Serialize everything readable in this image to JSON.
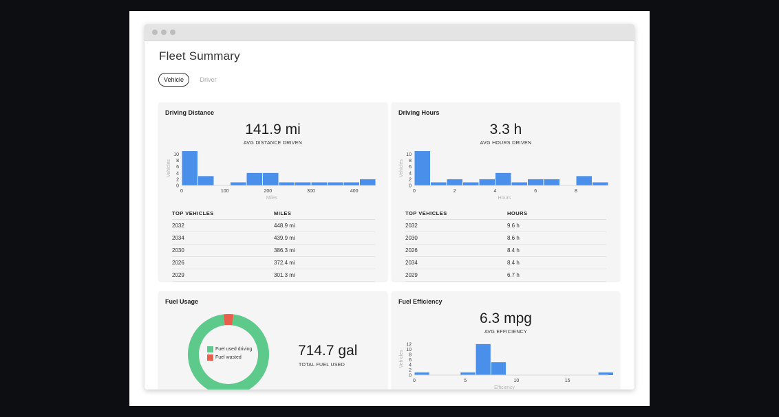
{
  "page": {
    "title": "Fleet Summary",
    "tabs": [
      {
        "label": "Vehicle",
        "active": true
      },
      {
        "label": "Driver",
        "active": false
      }
    ]
  },
  "colors": {
    "bar": "#4a8fea",
    "fuel_driving": "#5dc98a",
    "fuel_wasted": "#e8604c"
  },
  "cards": {
    "driving_distance": {
      "title": "Driving Distance",
      "value": "141.9 mi",
      "label": "AVG DISTANCE DRIVEN",
      "table": {
        "headers": [
          "TOP VEHICLES",
          "MILES"
        ],
        "rows": [
          [
            "2032",
            "448.9 mi"
          ],
          [
            "2034",
            "439.9 mi"
          ],
          [
            "2030",
            "386.3 mi"
          ],
          [
            "2026",
            "372.4 mi"
          ],
          [
            "2029",
            "301.3 mi"
          ]
        ]
      }
    },
    "driving_hours": {
      "title": "Driving Hours",
      "value": "3.3 h",
      "label": "AVG HOURS DRIVEN",
      "table": {
        "headers": [
          "TOP VEHICLES",
          "HOURS"
        ],
        "rows": [
          [
            "2032",
            "9.6 h"
          ],
          [
            "2030",
            "8.6 h"
          ],
          [
            "2026",
            "8.4 h"
          ],
          [
            "2034",
            "8.4 h"
          ],
          [
            "2029",
            "6.7 h"
          ]
        ]
      }
    },
    "fuel_usage": {
      "title": "Fuel Usage",
      "value": "714.7 gal",
      "label": "TOTAL FUEL USED",
      "legend": [
        "Fuel used driving",
        "Fuel wasted"
      ]
    },
    "fuel_efficiency": {
      "title": "Fuel Efficiency",
      "value": "6.3 mpg",
      "label": "AVG EFFICIENCY"
    }
  },
  "chart_data": [
    {
      "type": "bar",
      "id": "distance",
      "ylabel": "Vehicles",
      "xlabel": "Miles",
      "xlim": [
        0,
        450
      ],
      "ylim": [
        0,
        11
      ],
      "yticks": [
        0,
        2,
        4,
        6,
        8,
        10
      ],
      "xticks": [
        0,
        100,
        200,
        300,
        400
      ],
      "bin_width": 37.5,
      "values": [
        11,
        3,
        0,
        1,
        4,
        4,
        1,
        1,
        1,
        1,
        1,
        2
      ]
    },
    {
      "type": "bar",
      "id": "hours",
      "ylabel": "Vehicles",
      "xlabel": "Hours",
      "xlim": [
        0,
        9.6
      ],
      "ylim": [
        0,
        11
      ],
      "yticks": [
        0,
        2,
        4,
        6,
        8,
        10
      ],
      "xticks": [
        0,
        2,
        4,
        6,
        8
      ],
      "bin_width": 0.8,
      "values": [
        11,
        1,
        2,
        1,
        2,
        4,
        1,
        2,
        2,
        0,
        3,
        1
      ]
    },
    {
      "type": "bar",
      "id": "efficiency",
      "ylabel": "Vehicles",
      "xlabel": "Efficiency",
      "xlim": [
        0,
        19
      ],
      "ylim": [
        0,
        12.5
      ],
      "yticks": [
        0,
        2,
        4,
        6,
        8,
        10,
        12
      ],
      "xticks": [
        0,
        5,
        10,
        15
      ],
      "bin_width": 1.5,
      "values": [
        1,
        0,
        0,
        1,
        12,
        5,
        0,
        0,
        0,
        0,
        0,
        0,
        1
      ]
    },
    {
      "type": "pie",
      "id": "fuel",
      "categories": [
        "Fuel used driving",
        "Fuel wasted"
      ],
      "values": [
        96,
        4
      ]
    }
  ]
}
